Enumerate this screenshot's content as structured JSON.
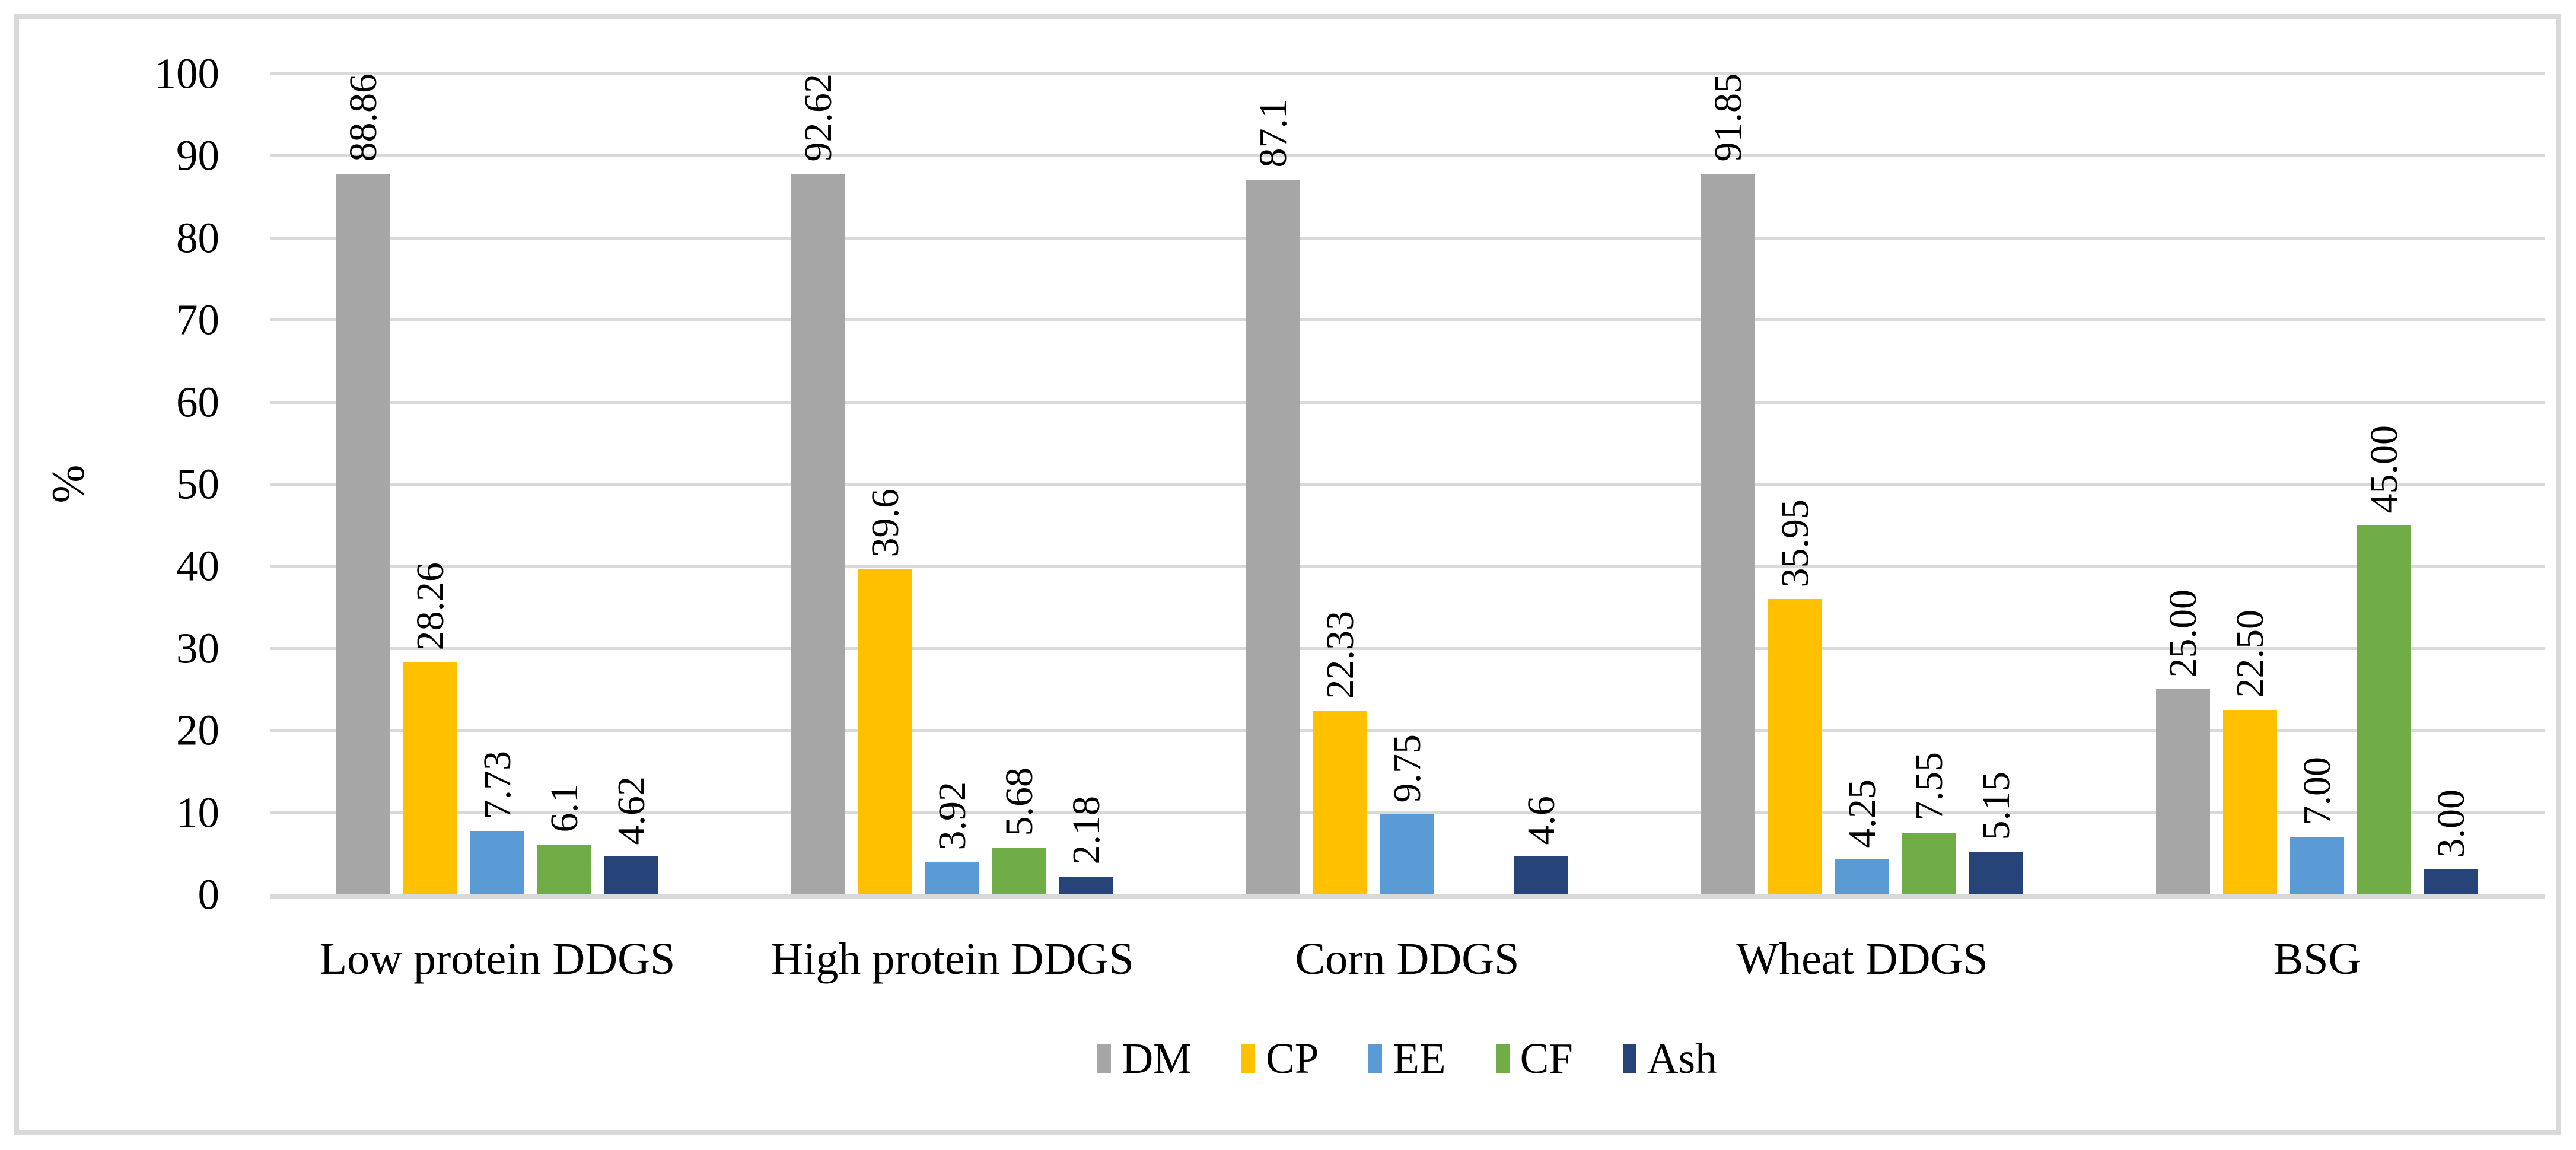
{
  "figure": {
    "background_color": "#FFFFFF",
    "border_color": "#D9D9D9",
    "gridline_color": "#D9D9D9"
  },
  "chart_data": {
    "type": "bar",
    "title": "",
    "xlabel": "",
    "ylabel": "%",
    "ylim": [
      0,
      100
    ],
    "ytick_step": 10,
    "yticks": [
      0,
      10,
      20,
      30,
      40,
      50,
      60,
      70,
      80,
      90,
      100
    ],
    "grid": true,
    "legend_position": "bottom",
    "data_labels_rotated": "90deg-counterclockwise",
    "categories": [
      "Low protein DDGS",
      "High protein DDGS",
      "Corn DDGS",
      "Wheat DDGS",
      "BSG"
    ],
    "series": [
      {
        "name": "DM",
        "color": "#A6A6A6",
        "values": [
          88.86,
          92.62,
          87.1,
          91.85,
          25.0
        ],
        "labels": [
          "88.86",
          "92.62",
          "87.1",
          "91.85",
          "25.00"
        ]
      },
      {
        "name": "CP",
        "color": "#FFC000",
        "values": [
          28.26,
          39.6,
          22.33,
          35.95,
          22.5
        ],
        "labels": [
          "28.26",
          "39.6",
          "22.33",
          "35.95",
          "22.50"
        ]
      },
      {
        "name": "EE",
        "color": "#5B9BD5",
        "values": [
          7.73,
          3.92,
          9.75,
          4.25,
          7.0
        ],
        "labels": [
          "7.73",
          "3.92",
          "9.75",
          "4.25",
          "7.00"
        ]
      },
      {
        "name": "CF",
        "color": "#70AD47",
        "values": [
          6.1,
          5.68,
          null,
          7.55,
          45.0
        ],
        "labels": [
          "6.1",
          "5.68",
          null,
          "7.55",
          "45.00"
        ]
      },
      {
        "name": "Ash",
        "color": "#264478",
        "values": [
          4.62,
          2.18,
          4.6,
          5.15,
          3.0
        ],
        "labels": [
          "4.62",
          "2.18",
          "4.6",
          "5.15",
          "3.00"
        ]
      }
    ]
  }
}
